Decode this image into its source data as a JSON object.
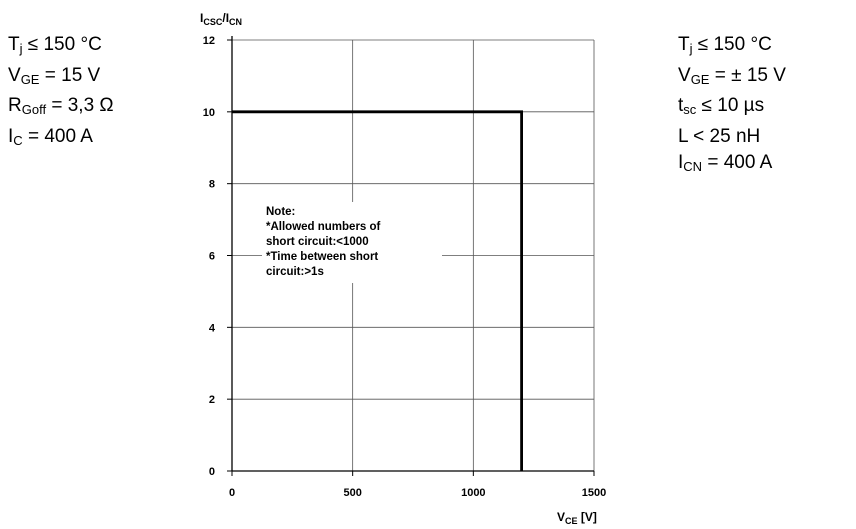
{
  "conditions_left": [
    {
      "base": "T",
      "sub": "j",
      "rest": " ≤ 150 °C"
    },
    {
      "base": "V",
      "sub": "GE",
      "rest": " = 15 V"
    },
    {
      "base": "R",
      "sub": "Goff",
      "rest": " = 3,3 Ω"
    },
    {
      "base": "I",
      "sub": "C",
      "rest": " = 400 A"
    }
  ],
  "conditions_right": [
    {
      "base": "T",
      "sub": "j",
      "rest": " ≤ 150 °C"
    },
    {
      "base": "V",
      "sub": "GE",
      "rest": " = ± 15 V"
    },
    {
      "base": "t",
      "sub": "sc",
      "rest": " ≤ 10 µs"
    },
    {
      "base": "L",
      "sub": "",
      "rest": " < 25 nH"
    },
    {
      "base": "I",
      "sub": "CN",
      "rest": " = 400 A"
    }
  ],
  "note_lines": [
    "Note:",
    "*Allowed numbers of",
    "  short circuit:<1000",
    "*Time between short",
    "  circuit:>1s"
  ],
  "chart_data": {
    "type": "line",
    "ylabel_parts": {
      "a": "I",
      "a_sub": "CSC",
      "slash": "/",
      "b": "I",
      "b_sub": "CN"
    },
    "xlabel_parts": {
      "a": "V",
      "a_sub": "CE",
      "unit": " [V]"
    },
    "xlim": [
      0,
      1500
    ],
    "ylim": [
      0,
      12
    ],
    "xticks": [
      0,
      500,
      1000,
      1500
    ],
    "yticks": [
      0,
      2,
      4,
      6,
      8,
      10,
      12
    ],
    "grid": true,
    "series": [
      {
        "x": [
          0,
          1200,
          1200
        ],
        "y": [
          10,
          10,
          0
        ]
      }
    ],
    "line_color": "#000000",
    "grid_color": "#555555"
  }
}
